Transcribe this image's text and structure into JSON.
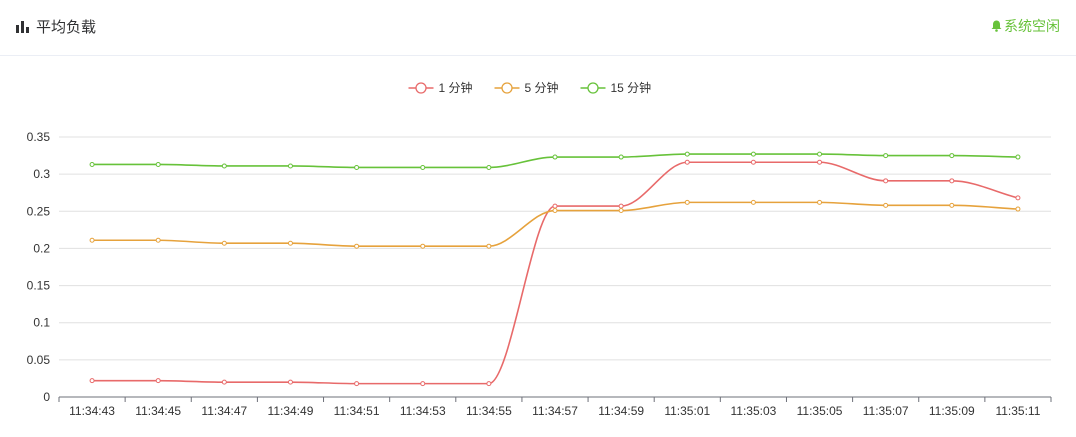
{
  "header": {
    "title": "平均负载",
    "status_text": "系统空闲",
    "status_color": "#67c23a"
  },
  "icons": {
    "title_icon": "bar-chart-icon",
    "status_icon": "bell-icon"
  },
  "chart_data": {
    "type": "line",
    "smooth": true,
    "x": [
      "11:34:43",
      "11:34:45",
      "11:34:47",
      "11:34:49",
      "11:34:51",
      "11:34:53",
      "11:34:55",
      "11:34:57",
      "11:34:59",
      "11:35:01",
      "11:35:03",
      "11:35:05",
      "11:35:07",
      "11:35:09",
      "11:35:11"
    ],
    "series": [
      {
        "name": "1 分钟",
        "color": "#e86a6a",
        "values": [
          0.022,
          0.022,
          0.02,
          0.02,
          0.018,
          0.018,
          0.018,
          0.257,
          0.257,
          0.316,
          0.316,
          0.316,
          0.291,
          0.291,
          0.268
        ]
      },
      {
        "name": "5 分钟",
        "color": "#e6a23c",
        "values": [
          0.211,
          0.211,
          0.207,
          0.207,
          0.203,
          0.203,
          0.203,
          0.251,
          0.251,
          0.262,
          0.262,
          0.262,
          0.258,
          0.258,
          0.253
        ]
      },
      {
        "name": "15 分钟",
        "color": "#67c23a",
        "values": [
          0.313,
          0.313,
          0.311,
          0.311,
          0.309,
          0.309,
          0.309,
          0.323,
          0.323,
          0.327,
          0.327,
          0.327,
          0.325,
          0.325,
          0.323
        ]
      }
    ],
    "yticks": [
      "0",
      "0.05",
      "0.1",
      "0.15",
      "0.2",
      "0.25",
      "0.3",
      "0.35"
    ],
    "ylim": [
      0,
      0.35
    ],
    "grid": true,
    "legend_position": "top-center"
  }
}
